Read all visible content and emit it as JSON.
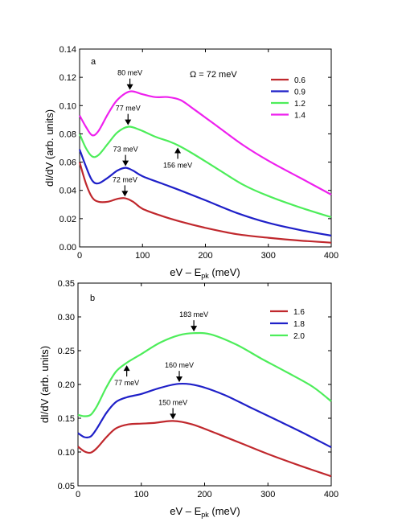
{
  "chart_data": [
    {
      "type": "line",
      "panel_label": "a",
      "annotation_text": "Ω = 72 meV",
      "xlabel": "eV – E",
      "xlabel_sub": "pk",
      "xlabel_unit": " (meV)",
      "ylabel": "dI/dV (arb. units)",
      "xlim": [
        0,
        400
      ],
      "ylim": [
        0,
        0.14
      ],
      "xticks": [
        0,
        100,
        200,
        300,
        400
      ],
      "yticks": [
        0.0,
        0.02,
        0.04,
        0.06,
        0.08,
        0.1,
        0.12,
        0.14
      ],
      "ytick_labels": [
        "0.00",
        "0.02",
        "0.04",
        "0.06",
        "0.08",
        "0.10",
        "0.12",
        "0.14"
      ],
      "grid": false,
      "legend_position": "top-right",
      "series": [
        {
          "name": "0.6",
          "color": "#c0282d",
          "points": [
            [
              0,
              0.06
            ],
            [
              10,
              0.045
            ],
            [
              20,
              0.035
            ],
            [
              30,
              0.032
            ],
            [
              45,
              0.032
            ],
            [
              60,
              0.034
            ],
            [
              72,
              0.0345
            ],
            [
              85,
              0.032
            ],
            [
              100,
              0.027
            ],
            [
              130,
              0.022
            ],
            [
              160,
              0.018
            ],
            [
              200,
              0.0135
            ],
            [
              250,
              0.009
            ],
            [
              300,
              0.0065
            ],
            [
              350,
              0.0045
            ],
            [
              400,
              0.003
            ]
          ]
        },
        {
          "name": "0.9",
          "color": "#1f20c8",
          "points": [
            [
              0,
              0.069
            ],
            [
              10,
              0.057
            ],
            [
              20,
              0.047
            ],
            [
              30,
              0.045
            ],
            [
              45,
              0.049
            ],
            [
              60,
              0.054
            ],
            [
              73,
              0.056
            ],
            [
              85,
              0.054
            ],
            [
              100,
              0.05
            ],
            [
              130,
              0.045
            ],
            [
              160,
              0.04
            ],
            [
              200,
              0.033
            ],
            [
              250,
              0.024
            ],
            [
              300,
              0.017
            ],
            [
              350,
              0.012
            ],
            [
              400,
              0.008
            ]
          ]
        },
        {
          "name": "1.2",
          "color": "#4ded5a",
          "points": [
            [
              0,
              0.08
            ],
            [
              10,
              0.07
            ],
            [
              20,
              0.064
            ],
            [
              30,
              0.065
            ],
            [
              45,
              0.073
            ],
            [
              60,
              0.081
            ],
            [
              77,
              0.085
            ],
            [
              95,
              0.083
            ],
            [
              120,
              0.078
            ],
            [
              140,
              0.075
            ],
            [
              156,
              0.072
            ],
            [
              180,
              0.066
            ],
            [
              220,
              0.055
            ],
            [
              260,
              0.044
            ],
            [
              300,
              0.036
            ],
            [
              350,
              0.028
            ],
            [
              400,
              0.021
            ]
          ]
        },
        {
          "name": "1.4",
          "color": "#ee20ee",
          "points": [
            [
              0,
              0.093
            ],
            [
              10,
              0.085
            ],
            [
              20,
              0.079
            ],
            [
              30,
              0.082
            ],
            [
              45,
              0.094
            ],
            [
              60,
              0.104
            ],
            [
              80,
              0.11
            ],
            [
              100,
              0.108
            ],
            [
              120,
              0.106
            ],
            [
              140,
              0.106
            ],
            [
              160,
              0.104
            ],
            [
              180,
              0.098
            ],
            [
              220,
              0.085
            ],
            [
              260,
              0.072
            ],
            [
              300,
              0.061
            ],
            [
              350,
              0.049
            ],
            [
              400,
              0.037
            ]
          ]
        }
      ],
      "arrows": [
        {
          "label": "80 meV",
          "x": 80,
          "y": 0.11,
          "direction": "down"
        },
        {
          "label": "77 meV",
          "x": 77,
          "y": 0.085,
          "direction": "down"
        },
        {
          "label": "73 meV",
          "x": 73,
          "y": 0.056,
          "direction": "down"
        },
        {
          "label": "72 meV",
          "x": 72,
          "y": 0.0345,
          "direction": "down"
        },
        {
          "label": "156 meV",
          "x": 156,
          "y": 0.072,
          "direction": "up"
        }
      ]
    },
    {
      "type": "line",
      "panel_label": "b",
      "xlabel": "eV – E",
      "xlabel_sub": "pk",
      "xlabel_unit": " (meV)",
      "ylabel": "dI/dV (arb. units)",
      "xlim": [
        0,
        400
      ],
      "ylim": [
        0.05,
        0.35
      ],
      "xticks": [
        0,
        100,
        200,
        300,
        400
      ],
      "yticks": [
        0.05,
        0.1,
        0.15,
        0.2,
        0.25,
        0.3,
        0.35
      ],
      "ytick_labels": [
        "0.05",
        "0.10",
        "0.15",
        "0.20",
        "0.25",
        "0.30",
        "0.35"
      ],
      "grid": false,
      "legend_position": "top-right",
      "series": [
        {
          "name": "1.6",
          "color": "#c0282d",
          "points": [
            [
              0,
              0.108
            ],
            [
              10,
              0.101
            ],
            [
              20,
              0.099
            ],
            [
              30,
              0.106
            ],
            [
              45,
              0.122
            ],
            [
              60,
              0.135
            ],
            [
              80,
              0.141
            ],
            [
              100,
              0.142
            ],
            [
              120,
              0.143
            ],
            [
              150,
              0.146
            ],
            [
              180,
              0.141
            ],
            [
              220,
              0.127
            ],
            [
              260,
              0.112
            ],
            [
              300,
              0.097
            ],
            [
              350,
              0.08
            ],
            [
              400,
              0.064
            ]
          ]
        },
        {
          "name": "1.8",
          "color": "#1f20c8",
          "points": [
            [
              0,
              0.128
            ],
            [
              10,
              0.122
            ],
            [
              20,
              0.123
            ],
            [
              30,
              0.135
            ],
            [
              45,
              0.158
            ],
            [
              60,
              0.174
            ],
            [
              77,
              0.181
            ],
            [
              100,
              0.186
            ],
            [
              130,
              0.195
            ],
            [
              160,
              0.201
            ],
            [
              190,
              0.198
            ],
            [
              230,
              0.185
            ],
            [
              270,
              0.167
            ],
            [
              310,
              0.149
            ],
            [
              350,
              0.131
            ],
            [
              400,
              0.107
            ]
          ]
        },
        {
          "name": "2.0",
          "color": "#4ded5a",
          "points": [
            [
              0,
              0.155
            ],
            [
              10,
              0.153
            ],
            [
              20,
              0.155
            ],
            [
              30,
              0.168
            ],
            [
              45,
              0.196
            ],
            [
              60,
              0.219
            ],
            [
              77,
              0.232
            ],
            [
              100,
              0.245
            ],
            [
              130,
              0.262
            ],
            [
              160,
              0.273
            ],
            [
              183,
              0.276
            ],
            [
              210,
              0.274
            ],
            [
              250,
              0.259
            ],
            [
              290,
              0.238
            ],
            [
              330,
              0.218
            ],
            [
              370,
              0.197
            ],
            [
              400,
              0.175
            ]
          ]
        }
      ],
      "arrows": [
        {
          "label": "183 meV",
          "x": 183,
          "y": 0.276,
          "direction": "down"
        },
        {
          "label": "160 meV",
          "x": 160,
          "y": 0.201,
          "direction": "down"
        },
        {
          "label": "150 meV",
          "x": 150,
          "y": 0.146,
          "direction": "down"
        },
        {
          "label": "77 meV",
          "x": 77,
          "y": 0.232,
          "direction": "up"
        }
      ]
    }
  ]
}
